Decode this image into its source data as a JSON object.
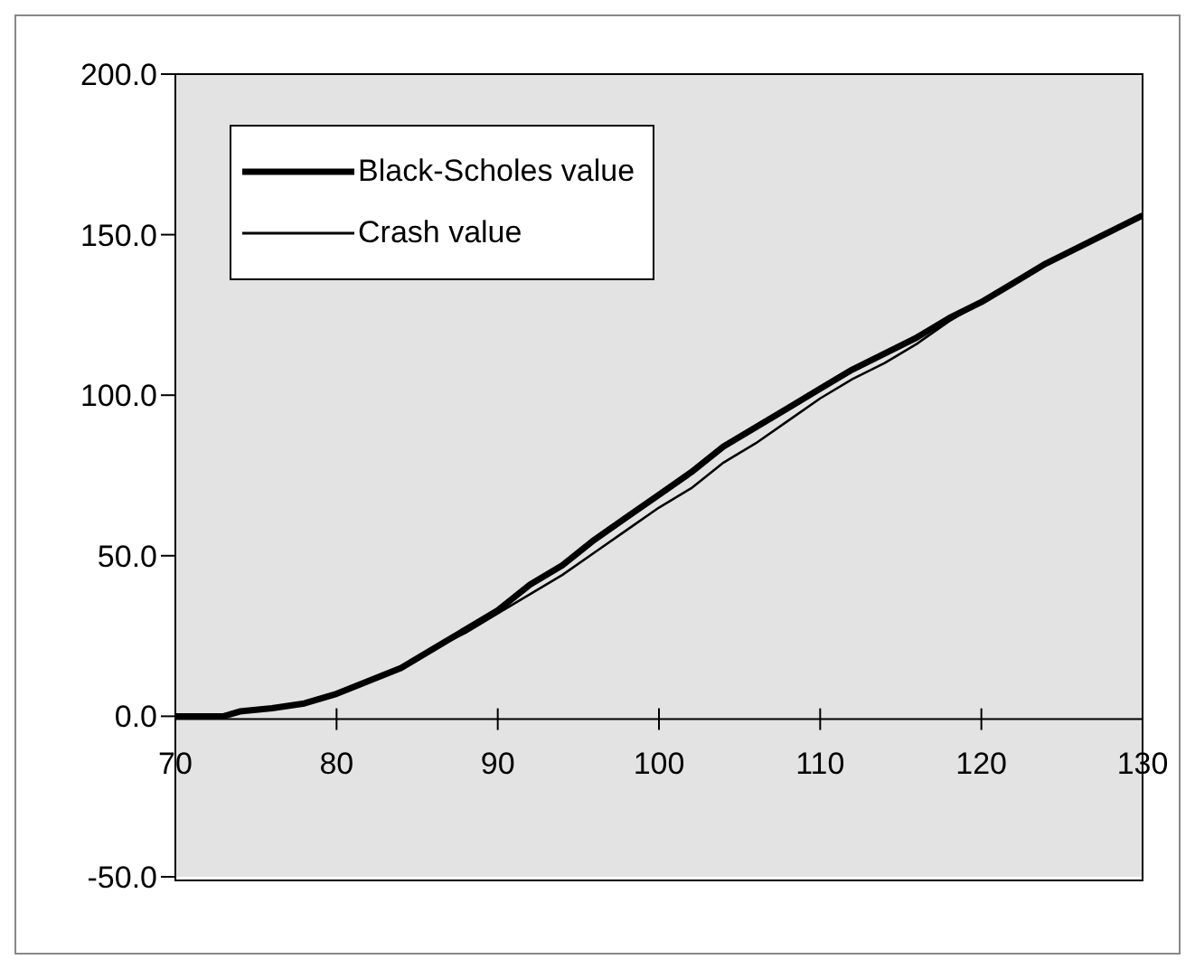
{
  "chart_data": {
    "type": "line",
    "x": [
      70,
      72,
      73,
      74,
      76,
      78,
      80,
      82,
      84,
      86,
      88,
      90,
      92,
      94,
      96,
      98,
      100,
      102,
      104,
      106,
      108,
      110,
      112,
      114,
      116,
      118,
      120,
      122,
      124,
      126,
      128,
      130
    ],
    "series": [
      {
        "name": "Black-Scholes value",
        "color": "#000000",
        "values": [
          0,
          0,
          0,
          1.5,
          2.5,
          4,
          7,
          11,
          15,
          21,
          27,
          33,
          41,
          47,
          55,
          62,
          69,
          76,
          84,
          90,
          96,
          102,
          108,
          113,
          118,
          124,
          129,
          135,
          141,
          146,
          151,
          156
        ]
      },
      {
        "name": "Crash value",
        "color": "#000000",
        "values": [
          0,
          0,
          0,
          1.5,
          2.5,
          4,
          7,
          11,
          15,
          21,
          26,
          32,
          38,
          44,
          51,
          58,
          65,
          71,
          79,
          85,
          92,
          99,
          105,
          110,
          116,
          123,
          129,
          135,
          141,
          146,
          151,
          156
        ]
      }
    ],
    "xlim": [
      70,
      130
    ],
    "xticks": [
      70,
      80,
      90,
      100,
      110,
      120,
      130
    ],
    "ylim": [
      -50,
      200
    ],
    "yticks": [
      {
        "value": -50,
        "label": "-50.0"
      },
      {
        "value": 0,
        "label": "0.0"
      },
      {
        "value": 50,
        "label": "50.0"
      },
      {
        "value": 100,
        "label": "100.0"
      },
      {
        "value": 150,
        "label": "150.0"
      },
      {
        "value": 200,
        "label": "200.0"
      }
    ],
    "grid": false,
    "legend": "top left",
    "marker": "none",
    "line_style": "solid"
  }
}
